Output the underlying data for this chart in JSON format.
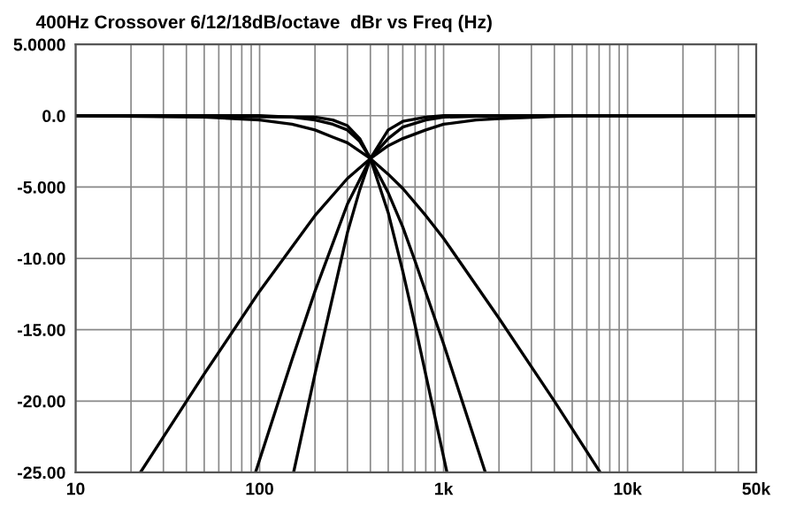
{
  "chart_data": {
    "type": "line",
    "title": "400Hz Crossover 6/12/18dB/octave  dBr vs Freq (Hz)",
    "log": "x",
    "grid": true,
    "marker": "none",
    "line_style": "solid",
    "xlim": [
      10,
      50000
    ],
    "ylim": [
      -25,
      5
    ],
    "xticks": [
      10,
      {
        "value": 20,
        "label": null
      },
      {
        "value": 30,
        "label": null
      },
      {
        "value": 40,
        "label": null
      },
      {
        "value": 50,
        "label": null
      },
      {
        "value": 60,
        "label": null
      },
      {
        "value": 70,
        "label": null
      },
      {
        "value": 80,
        "label": null
      },
      {
        "value": 90,
        "label": null
      },
      100,
      {
        "value": 200,
        "label": null
      },
      {
        "value": 300,
        "label": null
      },
      {
        "value": 400,
        "label": null
      },
      {
        "value": 500,
        "label": null
      },
      {
        "value": 600,
        "label": null
      },
      {
        "value": 700,
        "label": null
      },
      {
        "value": 800,
        "label": null
      },
      {
        "value": 900,
        "label": null
      },
      {
        "value": 1000,
        "label": "1k"
      },
      {
        "value": 2000,
        "label": null
      },
      {
        "value": 3000,
        "label": null
      },
      {
        "value": 4000,
        "label": null
      },
      {
        "value": 5000,
        "label": null
      },
      {
        "value": 6000,
        "label": null
      },
      {
        "value": 7000,
        "label": null
      },
      {
        "value": 8000,
        "label": null
      },
      {
        "value": 9000,
        "label": null
      },
      {
        "value": 10000,
        "label": "10k"
      },
      {
        "value": 20000,
        "label": null
      },
      {
        "value": 30000,
        "label": null
      },
      {
        "value": 40000,
        "label": null
      },
      {
        "value": 50000,
        "label": "50k"
      }
    ],
    "yticks": [
      {
        "value": 5,
        "label": "5.0000"
      },
      {
        "value": 0,
        "label": "0.0"
      },
      {
        "value": -5,
        "label": "-5.000"
      },
      {
        "value": -10,
        "label": "-10.00"
      },
      {
        "value": -15,
        "label": "-15.00"
      },
      {
        "value": -20,
        "label": "-20.00"
      },
      {
        "value": -25,
        "label": "-25.00"
      }
    ],
    "series": [
      {
        "color": "#000000",
        "x": [
          10,
          50,
          100,
          150,
          200,
          250,
          300,
          400,
          500,
          600,
          800,
          1000,
          2000,
          4000,
          7100
        ],
        "values": [
          0.0,
          -0.1,
          -0.3,
          -0.6,
          -1.0,
          -1.5,
          -1.9,
          -3.0,
          -4.1,
          -5.1,
          -7.0,
          -8.6,
          -14.2,
          -20.0,
          -25.0
        ]
      },
      {
        "color": "#000000",
        "x": [
          10,
          100,
          150,
          200,
          250,
          300,
          350,
          400,
          500,
          600,
          700,
          1000,
          1686
        ],
        "values": [
          0.0,
          0.0,
          -0.1,
          -0.3,
          -0.6,
          -1.0,
          -1.8,
          -3.0,
          -5.4,
          -7.8,
          -10.2,
          -16.0,
          -25.0
        ]
      },
      {
        "color": "#000000",
        "x": [
          10,
          200,
          250,
          300,
          350,
          400,
          500,
          600,
          700,
          1043
        ],
        "values": [
          0.0,
          -0.1,
          -0.3,
          -0.7,
          -1.6,
          -3.0,
          -6.8,
          -10.9,
          -14.7,
          -25.0
        ]
      },
      {
        "color": "#000000",
        "x": [
          22.5,
          50,
          100,
          200,
          300,
          400,
          500,
          600,
          800,
          1000,
          1500,
          2000,
          5000,
          10000,
          50000
        ],
        "values": [
          -25.0,
          -18.1,
          -12.3,
          -7.0,
          -4.4,
          -3.0,
          -2.1,
          -1.6,
          -1.0,
          -0.6,
          -0.3,
          -0.2,
          0.0,
          0.0,
          0.0
        ]
      },
      {
        "color": "#000000",
        "x": [
          95,
          150,
          200,
          300,
          400,
          500,
          600,
          800,
          1000,
          2000,
          50000
        ],
        "values": [
          -25.0,
          -17.1,
          -12.3,
          -6.2,
          -3.0,
          -1.6,
          -0.8,
          -0.3,
          -0.1,
          0.0,
          0.0
        ]
      },
      {
        "color": "#000000",
        "x": [
          153,
          200,
          300,
          350,
          400,
          500,
          600,
          800,
          1000,
          50000
        ],
        "values": [
          -25.0,
          -18.1,
          -8.2,
          -5.2,
          -3.0,
          -1.0,
          -0.4,
          -0.1,
          0.0,
          0.0
        ]
      }
    ]
  }
}
